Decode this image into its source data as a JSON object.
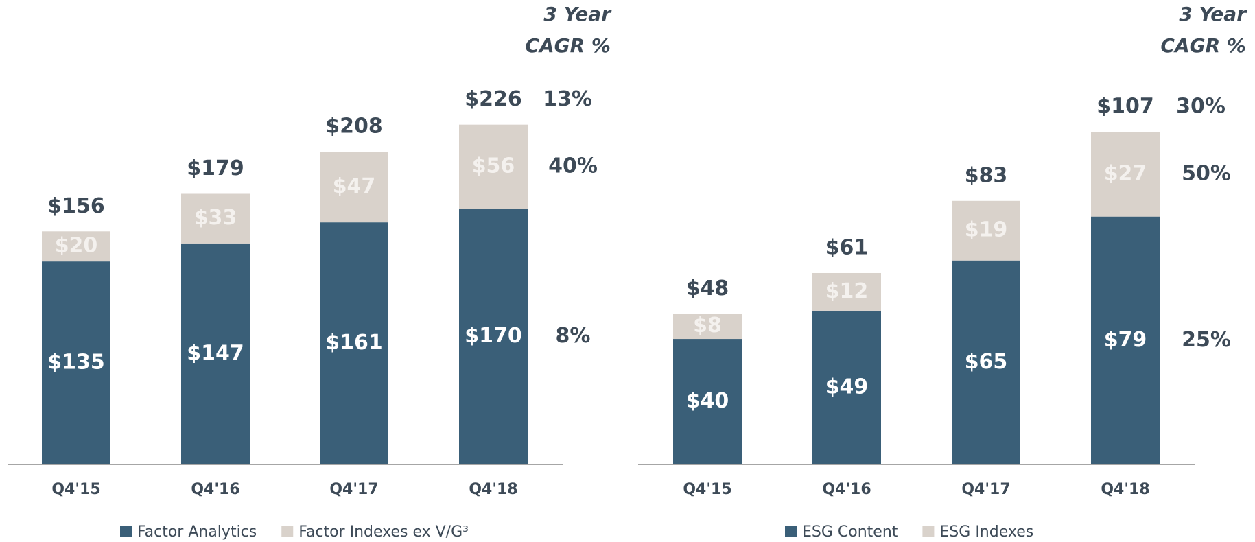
{
  "chart_data": [
    {
      "type": "bar",
      "stacked": true,
      "categories": [
        "Q4'15",
        "Q4'16",
        "Q4'17",
        "Q4'18"
      ],
      "ylim": [
        0,
        240
      ],
      "series": [
        {
          "name": "Factor Analytics",
          "color": "#3a5f78",
          "values": [
            135,
            147,
            161,
            170
          ],
          "value_labels": [
            "$135",
            "$147",
            "$161",
            "$170"
          ],
          "cagr": 8,
          "cagr_label": "8%"
        },
        {
          "name": "Factor Indexes ex V/G³",
          "color": "#d9d2cb",
          "values": [
            20,
            33,
            47,
            56
          ],
          "value_labels": [
            "$20",
            "$33",
            "$47",
            "$56"
          ],
          "cagr": 40,
          "cagr_label": "40%"
        }
      ],
      "totals": [
        156,
        179,
        208,
        226
      ],
      "total_labels": [
        "$156",
        "$179",
        "$208",
        "$226"
      ],
      "total_cagr": 13,
      "total_cagr_label": "13%",
      "cagr_header": [
        "3 Year",
        "CAGR %"
      ]
    },
    {
      "type": "bar",
      "stacked": true,
      "categories": [
        "Q4'15",
        "Q4'16",
        "Q4'17",
        "Q4'18"
      ],
      "ylim": [
        0,
        115
      ],
      "series": [
        {
          "name": "ESG Content",
          "color": "#3a5f78",
          "values": [
            40,
            49,
            65,
            79
          ],
          "value_labels": [
            "$40",
            "$49",
            "$65",
            "$79"
          ],
          "cagr": 25,
          "cagr_label": "25%"
        },
        {
          "name": "ESG Indexes",
          "color": "#d9d2cb",
          "values": [
            8,
            12,
            19,
            27
          ],
          "value_labels": [
            "$8",
            "$12",
            "$19",
            "$27"
          ],
          "cagr": 50,
          "cagr_label": "50%"
        }
      ],
      "totals": [
        48,
        61,
        83,
        107
      ],
      "total_labels": [
        "$48",
        "$61",
        "$83",
        "$107"
      ],
      "total_cagr": 30,
      "total_cagr_label": "30%",
      "cagr_header": [
        "3 Year",
        "CAGR %"
      ]
    }
  ]
}
